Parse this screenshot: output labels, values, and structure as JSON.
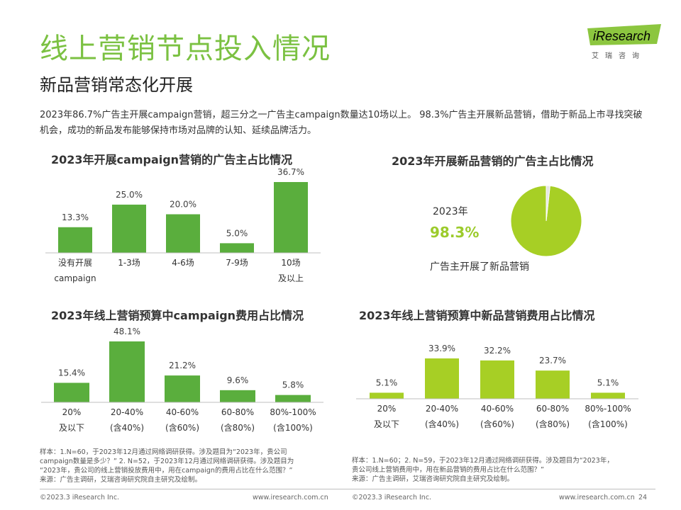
{
  "header": {
    "title": "线上营销节点投入情况",
    "subtitle": "新品营销常态化开展",
    "description": "2023年86.7%广告主开展campaign营销，超三分之一广告主campaign数量达10场以上。 98.3%广告主开展新品营销，借助于新品上市寻找突破机会，成功的新品发布能够保持市场对品牌的认知、延续品牌活力。",
    "logo_text": "iResearch",
    "logo_sub": "艾瑞咨询"
  },
  "colors": {
    "green_bar": "#5aae3d",
    "lime_bar": "#a7cf25",
    "title_green": "#7bc142"
  },
  "chart_data": [
    {
      "type": "bar",
      "title": "2023年开展campaign营销的广告主占比情况",
      "categories": [
        [
          "没有开展",
          "campaign"
        ],
        [
          "1-3场"
        ],
        [
          "4-6场"
        ],
        [
          "7-9场"
        ],
        [
          "10场",
          "及以上"
        ]
      ],
      "values": [
        13.3,
        25.0,
        20.0,
        5.0,
        36.7
      ],
      "value_labels": [
        "13.3%",
        "25.0%",
        "20.0%",
        "5.0%",
        "36.7%"
      ],
      "unit": "%",
      "color": "#5aae3d"
    },
    {
      "type": "pie",
      "title": "2023年开展新品营销的广告主占比情况",
      "year_label": "2023年",
      "value_label": "98.3%",
      "caption": "广告主开展了新品营销",
      "slices": [
        {
          "value": 98.3,
          "color": "#a7cf25"
        },
        {
          "value": 1.7,
          "color": "#e6e6e6"
        }
      ]
    },
    {
      "type": "bar",
      "title": "2023年线上营销预算中campaign费用占比情况",
      "categories": [
        [
          "20%",
          "及以下"
        ],
        [
          "20-40%",
          "(含40%)"
        ],
        [
          "40-60%",
          "(含60%)"
        ],
        [
          "60-80%",
          "(含80%)"
        ],
        [
          "80%-100%",
          "(含100%)"
        ]
      ],
      "values": [
        15.4,
        48.1,
        21.2,
        9.6,
        5.8
      ],
      "value_labels": [
        "15.4%",
        "48.1%",
        "21.2%",
        "9.6%",
        "5.8%"
      ],
      "unit": "%",
      "color": "#5aae3d"
    },
    {
      "type": "bar",
      "title": "2023年线上营销预算中新品营销费用占比情况",
      "categories": [
        [
          "20%",
          "及以下"
        ],
        [
          "20-40%",
          "(含40%)"
        ],
        [
          "40-60%",
          "(含60%)"
        ],
        [
          "60-80%",
          "(含80%)"
        ],
        [
          "80%-100%",
          "(含100%)"
        ]
      ],
      "values": [
        5.1,
        33.9,
        32.2,
        23.7,
        5.1
      ],
      "value_labels": [
        "5.1%",
        "33.9%",
        "32.2%",
        "23.7%",
        "5.1%"
      ],
      "unit": "%",
      "color": "#a7cf25"
    }
  ],
  "notes": {
    "left_lines": [
      "样本：1.N=60，于2023年12月通过网络调研获得。涉及题目为“2023年，贵公司",
      "campaign数量是多少？” 2. N=52，于2023年12月通过网络调研获得。涉及题目为",
      "“2023年，贵公司的线上营销投放费用中，用在campaign的费用占比在什么范围？”",
      "来源：广告主调研，艾瑞咨询研究院自主研究及绘制。"
    ],
    "right_lines": [
      "样本：1.N=60；2. N=59，于2023年12月通过网络调研获得。涉及题目为“2023年，",
      "贵公司线上营销费用中，用在新品营销的费用占比在什么范围？”",
      "来源：广告主调研，艾瑞咨询研究院自主研究及绘制。"
    ]
  },
  "footer": {
    "left_copyright": "©2023.3 iResearch Inc.",
    "left_site": "www.iresearch.com.cn",
    "right_copyright": "©2023.3 iResearch Inc.",
    "right_site": "www.iresearch.com.cn",
    "page_number": "24"
  }
}
